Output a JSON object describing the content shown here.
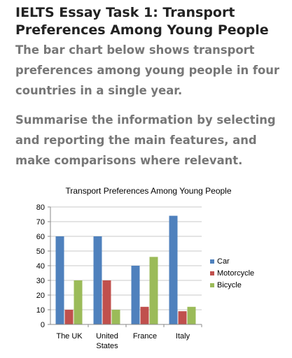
{
  "page": {
    "title": "IELTS Essay Task 1: Transport Preferences Among Young People",
    "prompt_line1": "The bar chart below shows transport preferences among young people in four countries in a single year.",
    "prompt_line2": "Summarise the information by selecting and reporting the main features, and make comparisons where relevant."
  },
  "chart_data": {
    "type": "bar",
    "title": "Transport Preferences Among Young People",
    "xlabel": "",
    "ylabel": "",
    "categories": [
      "The UK",
      "United States",
      "France",
      "Italy"
    ],
    "series": [
      {
        "name": "Car",
        "values": [
          60,
          60,
          40,
          74
        ],
        "color": "#4f81bd"
      },
      {
        "name": "Motorcycle",
        "values": [
          10,
          30,
          12,
          9
        ],
        "color": "#c0504d"
      },
      {
        "name": "Bicycle",
        "values": [
          30,
          10,
          46,
          12
        ],
        "color": "#9bbb59"
      }
    ],
    "ylim": [
      0,
      80
    ],
    "yticks": [
      0,
      10,
      20,
      30,
      40,
      50,
      60,
      70,
      80
    ],
    "grid": true,
    "legend_position": "right"
  }
}
